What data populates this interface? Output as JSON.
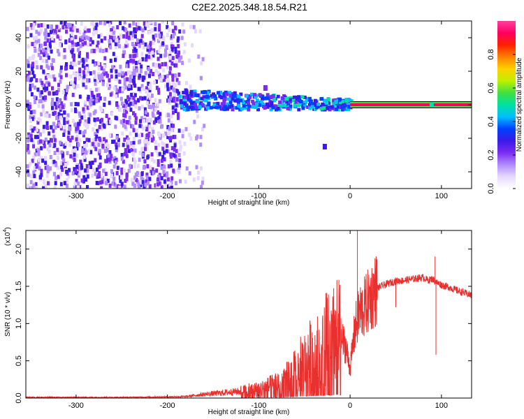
{
  "figure": {
    "title": "C2E2.2025.348.18.54.R21"
  },
  "chart_data": [
    {
      "type": "heatmap",
      "xlabel": "Height of straight line (km)",
      "ylabel": "Frequency (Hz)",
      "xlim": [
        -355,
        133
      ],
      "ylim": [
        -50,
        50
      ],
      "xticks": [
        -300,
        -200,
        -100,
        0,
        100
      ],
      "yticks": [
        -40,
        -20,
        0,
        20,
        40
      ],
      "colorbar": {
        "label": "Normalized spectral amplitude",
        "range": [
          0,
          1
        ],
        "ticks": [
          0.0,
          0.2,
          0.4,
          0.6,
          0.8
        ],
        "colors": [
          "#ffffff",
          "#e6d8ff",
          "#b08cff",
          "#7b2cf0",
          "#3a1ae8",
          "#0040ff",
          "#00c0ff",
          "#00e0a0",
          "#40e040",
          "#c0f000",
          "#ffd000",
          "#ff8000",
          "#ff2000",
          "#ff0060",
          "#ff40a0"
        ]
      },
      "regions": [
        {
          "name": "noise",
          "x": [
            -355,
            -188
          ],
          "freq_range": [
            -50,
            50
          ],
          "amplitude": [
            0.05,
            0.3
          ]
        },
        {
          "name": "sparse",
          "x": [
            -188,
            -160
          ],
          "freq_range": [
            -50,
            50
          ],
          "amplitude": [
            0.05,
            0.15
          ]
        },
        {
          "name": "signal-band",
          "x": [
            -188,
            0
          ],
          "center_freq": [
            3,
            0
          ],
          "amplitude": [
            0.2,
            0.55
          ]
        },
        {
          "name": "carrier-line",
          "x": [
            0,
            133
          ],
          "center_freq": 0,
          "amplitude": [
            0.75,
            0.9
          ]
        }
      ],
      "features": [
        {
          "x": -30,
          "freq": -25,
          "amplitude": 0.25
        },
        {
          "x": -95,
          "freq": 10,
          "amplitude": 0.2
        },
        {
          "x": 87,
          "freq": 0,
          "amplitude": 0.5
        }
      ]
    },
    {
      "type": "line",
      "xlabel": "Height of straight line (km)",
      "ylabel": "SNR (10 * v/v)",
      "ylabel_scale": "(x10",
      "ylabel_scale_exp": "4",
      "xlim": [
        -355,
        133
      ],
      "ylim": [
        0,
        2.25
      ],
      "xticks": [
        -300,
        -200,
        -100,
        0,
        100
      ],
      "yticks": [
        0.0,
        0.5,
        1.0,
        1.5,
        2.0
      ],
      "color": "#e8312f",
      "series": [
        {
          "x": [
            -355,
            -300,
            -250,
            -200,
            -180,
            -160,
            -140,
            -120,
            -100,
            -90,
            -80,
            -70,
            -60,
            -50,
            -40,
            -30,
            -25,
            -20,
            -15,
            -10,
            -5,
            0,
            5,
            10,
            15,
            20,
            25,
            30,
            40,
            50,
            60,
            70,
            80,
            85,
            90,
            95,
            100,
            110,
            120,
            133
          ],
          "values": [
            0.01,
            0.01,
            0.01,
            0.015,
            0.02,
            0.05,
            0.07,
            0.09,
            0.12,
            0.15,
            0.2,
            0.25,
            0.35,
            0.5,
            0.6,
            0.65,
            0.85,
            0.7,
            1.0,
            0.8,
            0.7,
            0.4,
            0.9,
            1.15,
            1.2,
            1.3,
            1.4,
            1.48,
            1.53,
            1.57,
            1.58,
            1.6,
            1.62,
            1.58,
            1.6,
            1.55,
            1.52,
            1.48,
            1.43,
            1.38
          ]
        }
      ],
      "spikes": [
        {
          "x": 8,
          "value": 2.25
        },
        {
          "x": 93,
          "value": 1.9
        },
        {
          "x": 94,
          "value": 0.58
        },
        {
          "x": 50,
          "value": 1.22
        }
      ]
    }
  ]
}
